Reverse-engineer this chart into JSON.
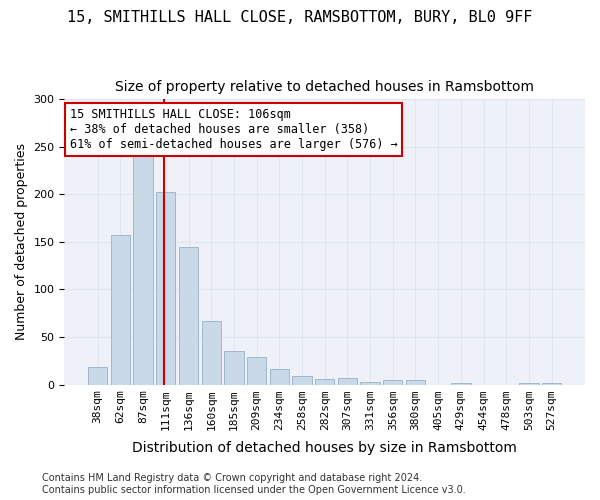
{
  "title": "15, SMITHILLS HALL CLOSE, RAMSBOTTOM, BURY, BL0 9FF",
  "subtitle": "Size of property relative to detached houses in Ramsbottom",
  "xlabel": "Distribution of detached houses by size in Ramsbottom",
  "ylabel": "Number of detached properties",
  "categories": [
    "38sqm",
    "62sqm",
    "87sqm",
    "111sqm",
    "136sqm",
    "160sqm",
    "185sqm",
    "209sqm",
    "234sqm",
    "258sqm",
    "282sqm",
    "307sqm",
    "331sqm",
    "356sqm",
    "380sqm",
    "405sqm",
    "429sqm",
    "454sqm",
    "478sqm",
    "503sqm",
    "527sqm"
  ],
  "values": [
    18,
    157,
    250,
    203,
    145,
    67,
    35,
    29,
    16,
    9,
    6,
    7,
    3,
    5,
    5,
    0,
    2,
    0,
    0,
    2,
    2
  ],
  "bar_color": "#c9d9e8",
  "bar_edge_color": "#a0b8cc",
  "vline_x": 2.93,
  "vline_color": "#cc0000",
  "annotation_text": "15 SMITHILLS HALL CLOSE: 106sqm\n← 38% of detached houses are smaller (358)\n61% of semi-detached houses are larger (576) →",
  "annotation_box_color": "#ffffff",
  "annotation_box_edgecolor": "#cc0000",
  "grid_color": "#e0e6ef",
  "background_color": "#eef2f8",
  "ylim": [
    0,
    300
  ],
  "footer_text": "Contains HM Land Registry data © Crown copyright and database right 2024.\nContains public sector information licensed under the Open Government Licence v3.0.",
  "title_fontsize": 11,
  "subtitle_fontsize": 10,
  "xlabel_fontsize": 10,
  "ylabel_fontsize": 9,
  "tick_fontsize": 8,
  "annotation_fontsize": 8.5,
  "footer_fontsize": 7
}
